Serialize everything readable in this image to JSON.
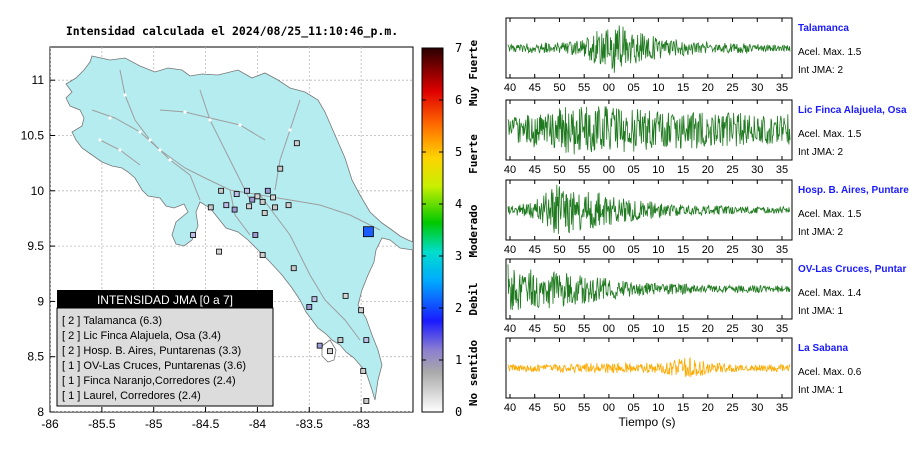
{
  "map": {
    "title": "Intensidad calculada el 2024/08/25_11:10:46_p.m.",
    "lon_ticks": [
      "-86",
      "-85.5",
      "-85",
      "-84.5",
      "-84",
      "-83.5",
      "-83"
    ],
    "lat_ticks": [
      "8",
      "8.5",
      "9",
      "9.5",
      "10",
      "10.5",
      "11"
    ],
    "lon_range": [
      -86,
      -82.5
    ],
    "lat_range": [
      8,
      11.3
    ],
    "land_color": "#b4ecf0",
    "station_marker_color": "#1a5cff",
    "legend": {
      "title": "INTENSIDAD JMA [0 a 7]",
      "items": [
        "[ 2 ]  Talamanca (6.3)",
        "[ 2 ]  Lic Finca Alajuela, Osa (3.4)",
        "[ 2 ]  Hosp. B. Aires, Puntarenas (3.3)",
        "[ 1 ]  OV-Las Cruces, Puntarenas (3.6)",
        "[ 1 ]  Finca Naranjo,Corredores (2.4)",
        "[ 1 ]  Laurel, Corredores (2.4)"
      ]
    }
  },
  "colorbar": {
    "ticks": [
      "0",
      "1",
      "2",
      "3",
      "4",
      "5",
      "6",
      "7"
    ],
    "levels": [
      "No sentido",
      "Debil",
      "Moderado",
      "Fuerte",
      "Muy Fuerte"
    ]
  },
  "seismograms": {
    "xlabel": "Tiempo (s)",
    "traces": [
      {
        "station": "Talamanca",
        "accel": "Acel. Max. 1.5",
        "jma": "Int JMA: 2",
        "color": "#1f7a1f",
        "ticks": [
          "40",
          "45",
          "50",
          "55",
          "00",
          "05",
          "10",
          "15",
          "20",
          "25",
          "30",
          "35"
        ]
      },
      {
        "station": "Lic Finca Alajuela, Osa",
        "accel": "Acel. Max. 1.5",
        "jma": "Int JMA: 2",
        "color": "#1f7a1f",
        "ticks": [
          "40",
          "45",
          "50",
          "55",
          "00",
          "05",
          "10",
          "15",
          "20",
          "25",
          "30",
          "35"
        ]
      },
      {
        "station": "Hosp. B. Aires, Puntare",
        "accel": "Acel. Max. 1.5",
        "jma": "Int JMA: 2",
        "color": "#1f7a1f",
        "ticks": [
          "40",
          "45",
          "50",
          "55",
          "00",
          "05",
          "10",
          "15",
          "20",
          "25",
          "30",
          "35"
        ]
      },
      {
        "station": "OV-Las Cruces, Puntar",
        "accel": "Acel. Max. 1.4",
        "jma": "Int JMA: 1",
        "color": "#1f7a1f",
        "ticks": [
          "40",
          "45",
          "50",
          "55",
          "00",
          "05",
          "10",
          "15",
          "20",
          "25",
          "30",
          "35"
        ]
      },
      {
        "station": "La Sabana",
        "accel": "Acel. Max. 0.6",
        "jma": "Int JMA: 1",
        "color": "#ffaa00",
        "ticks": [
          "40",
          "45",
          "50",
          "55",
          "00",
          "05",
          "10",
          "15",
          "20",
          "25",
          "30",
          "35"
        ]
      }
    ]
  },
  "chart_data": [
    {
      "type": "scatter",
      "title": "Intensidad calculada el 2024/08/25_11:10:46_p.m.",
      "xlabel": "",
      "ylabel": "",
      "xlim": [
        -86,
        -82.5
      ],
      "ylim": [
        8,
        11.3
      ],
      "series": [
        {
          "values": [
            [
              -83.62,
              10.43
            ],
            [
              -83.78,
              10.2
            ],
            [
              -84.1,
              10.0
            ],
            [
              -83.9,
              10.0
            ],
            [
              -83.85,
              9.94
            ],
            [
              -83.7,
              9.87
            ],
            [
              -84.35,
              10.0
            ],
            [
              -84.2,
              9.97
            ],
            [
              -84.05,
              9.92
            ],
            [
              -84.0,
              9.95
            ],
            [
              -83.95,
              9.9
            ],
            [
              -84.45,
              9.85
            ],
            [
              -84.3,
              9.87
            ],
            [
              -84.22,
              9.83
            ],
            [
              -84.08,
              9.86
            ],
            [
              -83.93,
              9.8
            ],
            [
              -83.83,
              9.85
            ],
            [
              -84.62,
              9.6
            ],
            [
              -84.02,
              9.6
            ],
            [
              -84.37,
              9.45
            ],
            [
              -83.95,
              9.42
            ],
            [
              -83.65,
              9.3
            ],
            [
              -83.45,
              9.02
            ],
            [
              -83.5,
              8.95
            ],
            [
              -83.15,
              9.05
            ],
            [
              -83.0,
              8.92
            ],
            [
              -83.2,
              8.65
            ],
            [
              -82.95,
              8.65
            ],
            [
              -83.4,
              8.6
            ],
            [
              -83.3,
              8.55
            ],
            [
              -82.98,
              8.37
            ],
            [
              -82.95,
              8.1
            ]
          ]
        },
        {
          "values": [
            [
              -82.93,
              9.63
            ]
          ]
        }
      ]
    },
    {
      "type": "line",
      "title": "",
      "xlabel": "Tiempo (s)",
      "ylabel": "",
      "categories": [
        "40",
        "45",
        "50",
        "55",
        "00",
        "05",
        "10",
        "15",
        "20",
        "25",
        "30",
        "35"
      ],
      "series": [
        {
          "name": "Talamanca",
          "values": [
            0.2,
            0.3,
            0.3,
            0.5,
            1.5,
            0.9,
            0.6,
            0.4,
            0.3,
            0.3,
            0.2,
            0.2
          ]
        },
        {
          "name": "Lic Finca Alajuela, Osa",
          "values": [
            0.6,
            1.0,
            1.2,
            1.5,
            1.3,
            1.2,
            1.0,
            1.1,
            0.9,
            1.0,
            0.8,
            0.9
          ]
        },
        {
          "name": "Hosp. B. Aires, Puntare",
          "values": [
            0.2,
            0.5,
            1.5,
            1.1,
            0.9,
            0.6,
            0.4,
            0.3,
            0.3,
            0.2,
            0.2,
            0.2
          ]
        },
        {
          "name": "OV-Las Cruces, Puntar",
          "values": [
            1.4,
            1.2,
            1.0,
            0.8,
            0.6,
            0.4,
            0.3,
            0.3,
            0.2,
            0.2,
            0.2,
            0.2
          ]
        },
        {
          "name": "La Sabana",
          "values": [
            0.2,
            0.2,
            0.25,
            0.25,
            0.3,
            0.25,
            0.35,
            0.6,
            0.3,
            0.2,
            0.2,
            0.2
          ]
        }
      ]
    }
  ]
}
